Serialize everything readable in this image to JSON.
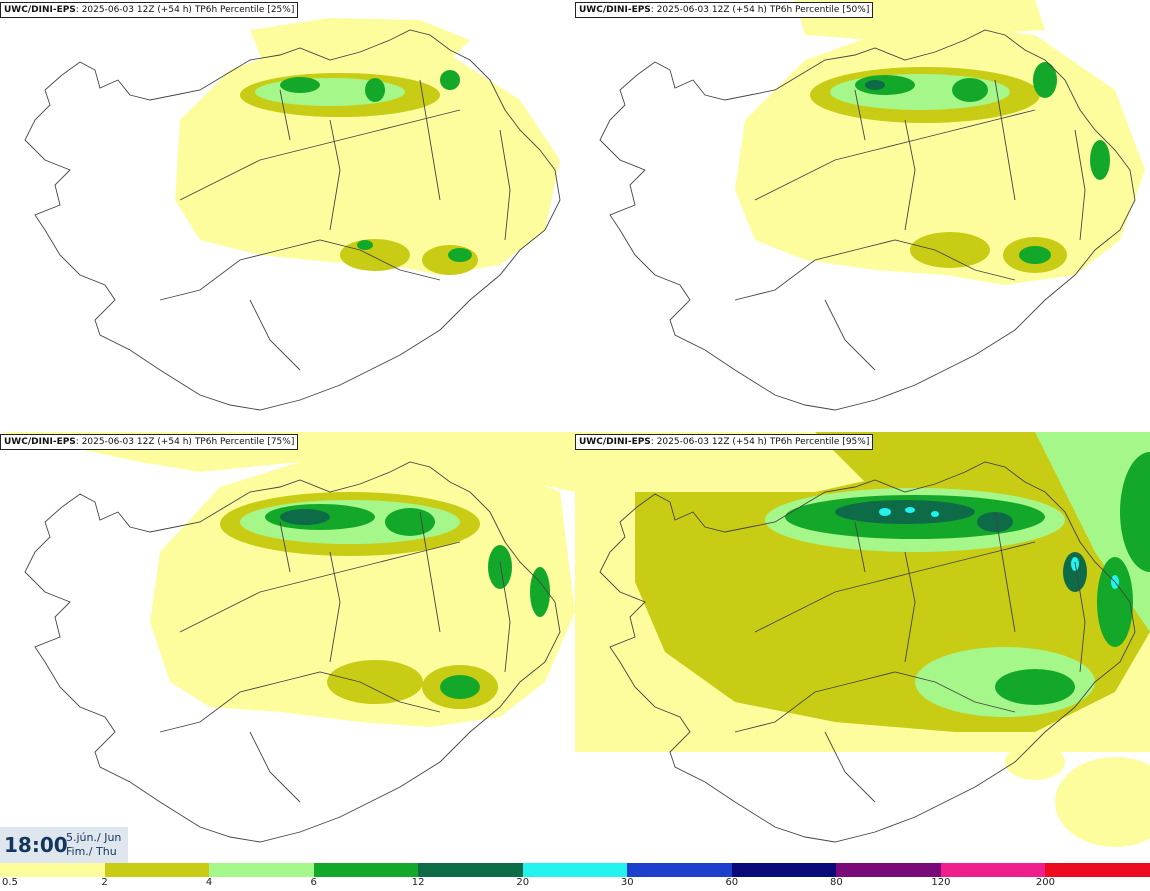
{
  "panels": [
    {
      "model": "UWC/DINI-EPS",
      "run": "2025-06-03 12Z (+54 h)",
      "product": "TP6h Percentile",
      "percentile": "[25%]"
    },
    {
      "model": "UWC/DINI-EPS",
      "run": "2025-06-03 12Z (+54 h)",
      "product": "TP6h Percentile",
      "percentile": "[50%]"
    },
    {
      "model": "UWC/DINI-EPS",
      "run": "2025-06-03 12Z (+54 h)",
      "product": "TP6h Percentile",
      "percentile": "[75%]"
    },
    {
      "model": "UWC/DINI-EPS",
      "run": "2025-06-03 12Z (+54 h)",
      "product": "TP6h Percentile",
      "percentile": "[95%]"
    }
  ],
  "time": {
    "clock": "18:00",
    "date_line": "5.jún./ Jun",
    "day_line": "Fim./ Thu"
  },
  "colorbar": {
    "ticks": [
      "0.5",
      "2",
      "4",
      "6",
      "12",
      "20",
      "30",
      "60",
      "80",
      "120",
      "200"
    ],
    "colors": [
      "#fdfd9e",
      "#c9cc14",
      "#a6f78a",
      "#14a82a",
      "#0e6b48",
      "#22f3ee",
      "#1c3fcc",
      "#0a0a78",
      "#7a0a7a",
      "#ee1e8c",
      "#ee0a1e"
    ]
  }
}
